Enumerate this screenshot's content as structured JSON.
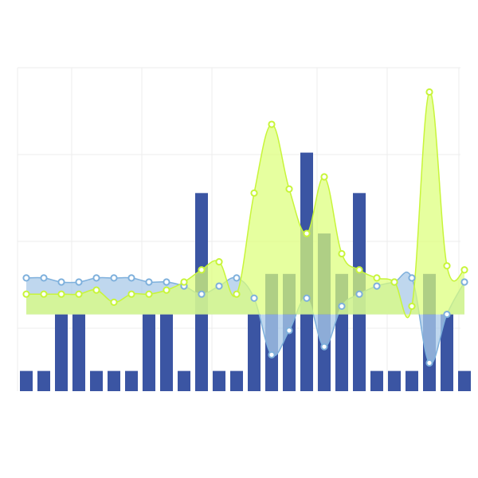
{
  "chart_data": {
    "type": "bar+area",
    "grid": true,
    "legend": "none",
    "x": [
      0,
      1,
      2,
      3,
      4,
      5,
      6,
      7,
      8,
      9,
      10,
      11,
      12,
      13,
      14,
      15,
      16,
      17,
      18,
      19,
      20,
      21,
      22,
      23,
      24,
      25
    ],
    "ylim": [
      -1.9,
      6.1
    ],
    "baseline": 0,
    "colors": {
      "bars": "#3b55a3",
      "area_blue_fill": "#a9c9e8",
      "area_blue_stroke": "#7eb0dc",
      "area_green_fill": "#dcff7a",
      "area_green_stroke": "#c8f53a",
      "overlap_fill": "#a6d4a8",
      "background": "#ffffff",
      "grid": "#ececec"
    },
    "series": [
      {
        "type": "bar",
        "values": [
          -1.4,
          -1.4,
          0,
          0,
          -1.4,
          -1.4,
          -1.4,
          0,
          0,
          -1.4,
          3,
          -1.4,
          -1.4,
          0,
          1,
          1,
          4,
          2,
          1,
          3,
          -1.4,
          -1.4,
          -1.4,
          1,
          0,
          -1.4
        ]
      },
      {
        "type": "area",
        "values": [
          0.9,
          0.9,
          0.8,
          0.8,
          0.9,
          0.9,
          0.9,
          0.8,
          0.8,
          0.7,
          0.5,
          0.7,
          0.9,
          0.4,
          -1,
          -0.4,
          0.4,
          -0.8,
          0.2,
          0.5,
          0.7,
          0.8,
          0.9,
          -1.2,
          0,
          0.8
        ]
      },
      {
        "type": "area",
        "values": [
          0.5,
          0.5,
          0.5,
          0.5,
          0.6,
          0.3,
          0.5,
          0.5,
          0.6,
          0.8,
          1.1,
          1.3,
          0.5,
          3,
          4.7,
          3.1,
          2,
          3.4,
          1.5,
          1.1,
          0.9,
          0.8,
          0.2,
          5.5,
          1.2,
          1.1
        ]
      }
    ]
  }
}
